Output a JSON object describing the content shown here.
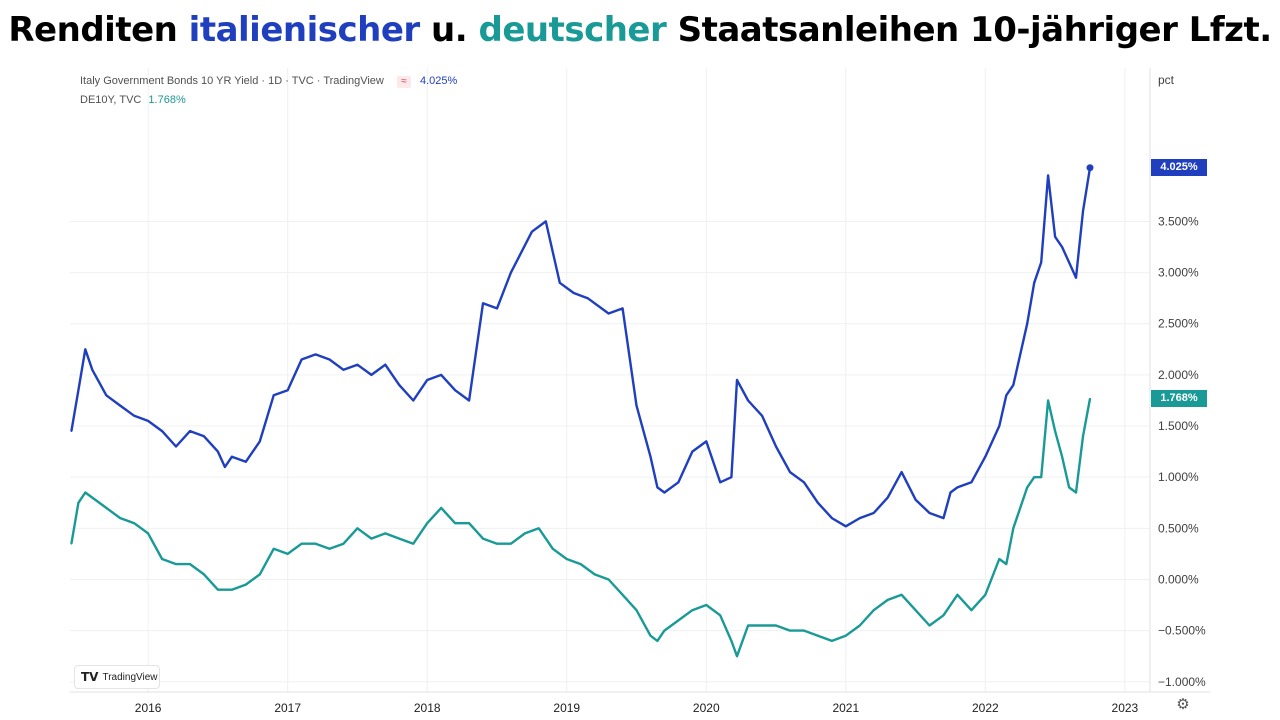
{
  "title": {
    "part1": "Renditen ",
    "part2": "italienischer",
    "part3": " u. ",
    "part4": "deutscher",
    "part5": " Staatsanleihen 10-jähriger Lfzt."
  },
  "legend": {
    "italy_label": "Italy Government Bonds 10 YR Yield · 1D · TVC · TradingView",
    "italy_value": "4.025%",
    "germany_label": "DE10Y, TVC",
    "germany_value": "1.768%",
    "approx_symbol": "≈"
  },
  "unit_label": "pct",
  "logo_text": "TradingView",
  "logo_mark": "TV",
  "settings_icon": "gear-icon",
  "colors": {
    "italy": "#1f3fbf",
    "germany": "#1a9a96",
    "grid": "#f0f0f0"
  },
  "chart_data": {
    "type": "line",
    "xlabel": "",
    "ylabel": "pct",
    "x_ticks": [
      "2016",
      "2017",
      "2018",
      "2019",
      "2020",
      "2021",
      "2022",
      "2023"
    ],
    "y_ticks": [
      "−1.000%",
      "−0.500%",
      "0.000%",
      "0.500%",
      "1.000%",
      "1.500%",
      "2.000%",
      "2.500%",
      "3.000%",
      "3.500%"
    ],
    "ylim": [
      -1.1,
      5.0
    ],
    "xlim": [
      2015.44,
      2023.18
    ],
    "grid": true,
    "legend_position": "top-left",
    "series": [
      {
        "name": "Italy Government Bonds 10 YR Yield",
        "last_label": "4.025%",
        "points": [
          [
            2015.45,
            1.45
          ],
          [
            2015.5,
            1.85
          ],
          [
            2015.55,
            2.25
          ],
          [
            2015.6,
            2.05
          ],
          [
            2015.7,
            1.8
          ],
          [
            2015.8,
            1.7
          ],
          [
            2015.9,
            1.6
          ],
          [
            2016.0,
            1.55
          ],
          [
            2016.1,
            1.45
          ],
          [
            2016.2,
            1.3
          ],
          [
            2016.3,
            1.45
          ],
          [
            2016.4,
            1.4
          ],
          [
            2016.5,
            1.25
          ],
          [
            2016.55,
            1.1
          ],
          [
            2016.6,
            1.2
          ],
          [
            2016.7,
            1.15
          ],
          [
            2016.8,
            1.35
          ],
          [
            2016.9,
            1.8
          ],
          [
            2017.0,
            1.85
          ],
          [
            2017.1,
            2.15
          ],
          [
            2017.2,
            2.2
          ],
          [
            2017.3,
            2.15
          ],
          [
            2017.4,
            2.05
          ],
          [
            2017.5,
            2.1
          ],
          [
            2017.6,
            2.0
          ],
          [
            2017.7,
            2.1
          ],
          [
            2017.8,
            1.9
          ],
          [
            2017.9,
            1.75
          ],
          [
            2018.0,
            1.95
          ],
          [
            2018.1,
            2.0
          ],
          [
            2018.2,
            1.85
          ],
          [
            2018.3,
            1.75
          ],
          [
            2018.4,
            2.7
          ],
          [
            2018.5,
            2.65
          ],
          [
            2018.6,
            3.0
          ],
          [
            2018.75,
            3.4
          ],
          [
            2018.85,
            3.5
          ],
          [
            2018.95,
            2.9
          ],
          [
            2019.05,
            2.8
          ],
          [
            2019.15,
            2.75
          ],
          [
            2019.3,
            2.6
          ],
          [
            2019.4,
            2.65
          ],
          [
            2019.5,
            1.7
          ],
          [
            2019.6,
            1.2
          ],
          [
            2019.65,
            0.9
          ],
          [
            2019.7,
            0.85
          ],
          [
            2019.8,
            0.95
          ],
          [
            2019.9,
            1.25
          ],
          [
            2020.0,
            1.35
          ],
          [
            2020.1,
            0.95
          ],
          [
            2020.18,
            1.0
          ],
          [
            2020.22,
            1.95
          ],
          [
            2020.3,
            1.75
          ],
          [
            2020.4,
            1.6
          ],
          [
            2020.5,
            1.3
          ],
          [
            2020.6,
            1.05
          ],
          [
            2020.7,
            0.95
          ],
          [
            2020.8,
            0.75
          ],
          [
            2020.9,
            0.6
          ],
          [
            2021.0,
            0.52
          ],
          [
            2021.1,
            0.6
          ],
          [
            2021.2,
            0.65
          ],
          [
            2021.3,
            0.8
          ],
          [
            2021.4,
            1.05
          ],
          [
            2021.5,
            0.78
          ],
          [
            2021.6,
            0.65
          ],
          [
            2021.7,
            0.6
          ],
          [
            2021.75,
            0.85
          ],
          [
            2021.8,
            0.9
          ],
          [
            2021.9,
            0.95
          ],
          [
            2022.0,
            1.2
          ],
          [
            2022.1,
            1.5
          ],
          [
            2022.15,
            1.8
          ],
          [
            2022.2,
            1.9
          ],
          [
            2022.3,
            2.5
          ],
          [
            2022.35,
            2.9
          ],
          [
            2022.4,
            3.1
          ],
          [
            2022.45,
            3.95
          ],
          [
            2022.5,
            3.35
          ],
          [
            2022.55,
            3.25
          ],
          [
            2022.6,
            3.1
          ],
          [
            2022.65,
            2.95
          ],
          [
            2022.7,
            3.6
          ],
          [
            2022.75,
            4.025
          ]
        ]
      },
      {
        "name": "DE10Y, TVC",
        "last_label": "1.768%",
        "points": [
          [
            2015.45,
            0.35
          ],
          [
            2015.5,
            0.75
          ],
          [
            2015.55,
            0.85
          ],
          [
            2015.6,
            0.8
          ],
          [
            2015.7,
            0.7
          ],
          [
            2015.8,
            0.6
          ],
          [
            2015.9,
            0.55
          ],
          [
            2016.0,
            0.45
          ],
          [
            2016.1,
            0.2
          ],
          [
            2016.2,
            0.15
          ],
          [
            2016.3,
            0.15
          ],
          [
            2016.4,
            0.05
          ],
          [
            2016.5,
            -0.1
          ],
          [
            2016.6,
            -0.1
          ],
          [
            2016.7,
            -0.05
          ],
          [
            2016.8,
            0.05
          ],
          [
            2016.9,
            0.3
          ],
          [
            2017.0,
            0.25
          ],
          [
            2017.1,
            0.35
          ],
          [
            2017.2,
            0.35
          ],
          [
            2017.3,
            0.3
          ],
          [
            2017.4,
            0.35
          ],
          [
            2017.5,
            0.5
          ],
          [
            2017.6,
            0.4
          ],
          [
            2017.7,
            0.45
          ],
          [
            2017.8,
            0.4
          ],
          [
            2017.9,
            0.35
          ],
          [
            2018.0,
            0.55
          ],
          [
            2018.1,
            0.7
          ],
          [
            2018.2,
            0.55
          ],
          [
            2018.3,
            0.55
          ],
          [
            2018.4,
            0.4
          ],
          [
            2018.5,
            0.35
          ],
          [
            2018.6,
            0.35
          ],
          [
            2018.7,
            0.45
          ],
          [
            2018.8,
            0.5
          ],
          [
            2018.9,
            0.3
          ],
          [
            2019.0,
            0.2
          ],
          [
            2019.1,
            0.15
          ],
          [
            2019.2,
            0.05
          ],
          [
            2019.3,
            0.0
          ],
          [
            2019.4,
            -0.15
          ],
          [
            2019.5,
            -0.3
          ],
          [
            2019.6,
            -0.55
          ],
          [
            2019.65,
            -0.6
          ],
          [
            2019.7,
            -0.5
          ],
          [
            2019.8,
            -0.4
          ],
          [
            2019.9,
            -0.3
          ],
          [
            2020.0,
            -0.25
          ],
          [
            2020.1,
            -0.35
          ],
          [
            2020.18,
            -0.6
          ],
          [
            2020.22,
            -0.75
          ],
          [
            2020.3,
            -0.45
          ],
          [
            2020.4,
            -0.45
          ],
          [
            2020.5,
            -0.45
          ],
          [
            2020.6,
            -0.5
          ],
          [
            2020.7,
            -0.5
          ],
          [
            2020.8,
            -0.55
          ],
          [
            2020.9,
            -0.6
          ],
          [
            2021.0,
            -0.55
          ],
          [
            2021.1,
            -0.45
          ],
          [
            2021.2,
            -0.3
          ],
          [
            2021.3,
            -0.2
          ],
          [
            2021.4,
            -0.15
          ],
          [
            2021.5,
            -0.3
          ],
          [
            2021.6,
            -0.45
          ],
          [
            2021.7,
            -0.35
          ],
          [
            2021.8,
            -0.15
          ],
          [
            2021.9,
            -0.3
          ],
          [
            2022.0,
            -0.15
          ],
          [
            2022.1,
            0.2
          ],
          [
            2022.15,
            0.15
          ],
          [
            2022.2,
            0.5
          ],
          [
            2022.3,
            0.9
          ],
          [
            2022.35,
            1.0
          ],
          [
            2022.4,
            1.0
          ],
          [
            2022.45,
            1.75
          ],
          [
            2022.5,
            1.45
          ],
          [
            2022.55,
            1.2
          ],
          [
            2022.6,
            0.9
          ],
          [
            2022.65,
            0.85
          ],
          [
            2022.7,
            1.4
          ],
          [
            2022.75,
            1.768
          ]
        ]
      }
    ]
  }
}
